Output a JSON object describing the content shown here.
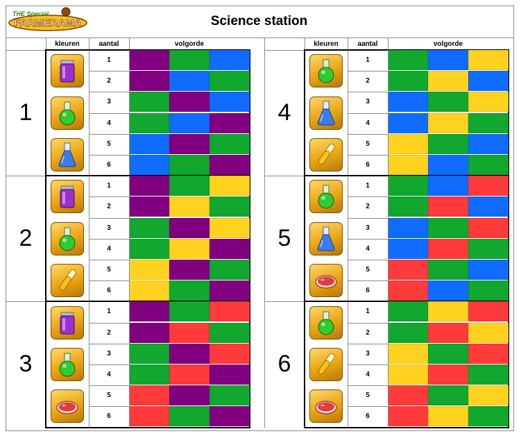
{
  "header": {
    "title": "Science station",
    "logo": {
      "small_text": "THE Special",
      "main_text": "FARMERAMA",
      "name": "farmerama-logo"
    }
  },
  "columns": {
    "colors": "kleuren",
    "count": "aantal",
    "order": "volgorde"
  },
  "palette": {
    "P": "#800080",
    "G": "#12a72e",
    "B": "#0f6cff",
    "Y": "#ffd21f",
    "R": "#ff3a3a"
  },
  "icons": {
    "purple": {
      "name": "purple-potion-jar-icon",
      "fill": "#9b2fd0"
    },
    "green": {
      "name": "green-flask-icon",
      "fill": "#2ecc2e"
    },
    "blue": {
      "name": "blue-flask-icon",
      "fill": "#3a7cf0"
    },
    "yellow": {
      "name": "yellow-test-tube-icon",
      "fill": "#f4c21a"
    },
    "red": {
      "name": "red-petri-dish-icon",
      "fill": "#e23c3c"
    }
  },
  "groups": [
    {
      "number": "1",
      "icons": [
        "purple",
        "green",
        "blue"
      ],
      "rows": [
        {
          "n": "1",
          "seq": [
            "P",
            "G",
            "B"
          ]
        },
        {
          "n": "2",
          "seq": [
            "P",
            "B",
            "G"
          ]
        },
        {
          "n": "3",
          "seq": [
            "G",
            "P",
            "B"
          ]
        },
        {
          "n": "4",
          "seq": [
            "G",
            "B",
            "P"
          ]
        },
        {
          "n": "5",
          "seq": [
            "B",
            "P",
            "G"
          ]
        },
        {
          "n": "6",
          "seq": [
            "B",
            "G",
            "P"
          ]
        }
      ]
    },
    {
      "number": "2",
      "icons": [
        "purple",
        "green",
        "yellow"
      ],
      "rows": [
        {
          "n": "1",
          "seq": [
            "P",
            "G",
            "Y"
          ]
        },
        {
          "n": "2",
          "seq": [
            "P",
            "Y",
            "G"
          ]
        },
        {
          "n": "3",
          "seq": [
            "G",
            "P",
            "Y"
          ]
        },
        {
          "n": "4",
          "seq": [
            "G",
            "Y",
            "P"
          ]
        },
        {
          "n": "5",
          "seq": [
            "Y",
            "P",
            "G"
          ]
        },
        {
          "n": "6",
          "seq": [
            "Y",
            "G",
            "P"
          ]
        }
      ]
    },
    {
      "number": "3",
      "icons": [
        "purple",
        "green",
        "red"
      ],
      "rows": [
        {
          "n": "1",
          "seq": [
            "P",
            "G",
            "R"
          ]
        },
        {
          "n": "2",
          "seq": [
            "P",
            "R",
            "G"
          ]
        },
        {
          "n": "3",
          "seq": [
            "G",
            "P",
            "R"
          ]
        },
        {
          "n": "4",
          "seq": [
            "G",
            "R",
            "P"
          ]
        },
        {
          "n": "5",
          "seq": [
            "R",
            "P",
            "G"
          ]
        },
        {
          "n": "6",
          "seq": [
            "R",
            "G",
            "P"
          ]
        }
      ]
    },
    {
      "number": "4",
      "icons": [
        "green",
        "blue",
        "yellow"
      ],
      "rows": [
        {
          "n": "1",
          "seq": [
            "G",
            "B",
            "Y"
          ]
        },
        {
          "n": "2",
          "seq": [
            "G",
            "Y",
            "B"
          ]
        },
        {
          "n": "3",
          "seq": [
            "B",
            "G",
            "Y"
          ]
        },
        {
          "n": "4",
          "seq": [
            "B",
            "Y",
            "G"
          ]
        },
        {
          "n": "5",
          "seq": [
            "Y",
            "G",
            "B"
          ]
        },
        {
          "n": "6",
          "seq": [
            "Y",
            "B",
            "G"
          ]
        }
      ]
    },
    {
      "number": "5",
      "icons": [
        "green",
        "blue",
        "red"
      ],
      "rows": [
        {
          "n": "1",
          "seq": [
            "G",
            "B",
            "R"
          ]
        },
        {
          "n": "2",
          "seq": [
            "G",
            "R",
            "B"
          ]
        },
        {
          "n": "3",
          "seq": [
            "B",
            "G",
            "R"
          ]
        },
        {
          "n": "4",
          "seq": [
            "B",
            "R",
            "G"
          ]
        },
        {
          "n": "5",
          "seq": [
            "R",
            "G",
            "B"
          ]
        },
        {
          "n": "6",
          "seq": [
            "R",
            "B",
            "G"
          ]
        }
      ]
    },
    {
      "number": "6",
      "icons": [
        "green",
        "yellow",
        "red"
      ],
      "rows": [
        {
          "n": "1",
          "seq": [
            "G",
            "Y",
            "R"
          ]
        },
        {
          "n": "2",
          "seq": [
            "G",
            "R",
            "Y"
          ]
        },
        {
          "n": "3",
          "seq": [
            "Y",
            "G",
            "R"
          ]
        },
        {
          "n": "4",
          "seq": [
            "Y",
            "R",
            "G"
          ]
        },
        {
          "n": "5",
          "seq": [
            "R",
            "G",
            "Y"
          ]
        },
        {
          "n": "6",
          "seq": [
            "R",
            "Y",
            "G"
          ]
        }
      ]
    }
  ]
}
